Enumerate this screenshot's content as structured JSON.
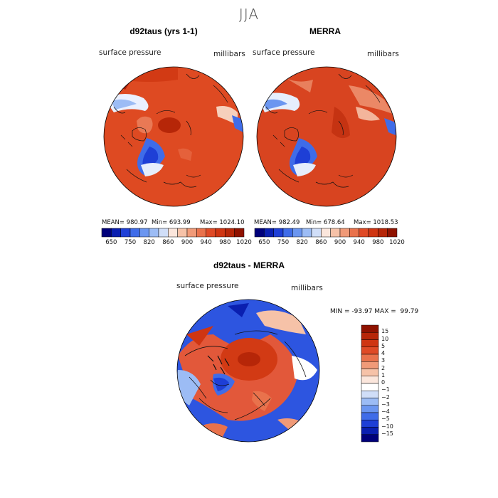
{
  "title": "JJA",
  "panels": [
    {
      "title": "d92taus (yrs 1-1)",
      "subtitle_left": "surface pressure",
      "subtitle_right": "millibars",
      "stats": {
        "mean": "MEAN= 980.97",
        "min": "Min= 693.99",
        "max": "Max= 1024.10"
      }
    },
    {
      "title": "MERRA",
      "subtitle_left": "surface pressure",
      "subtitle_right": "millibars",
      "stats": {
        "mean": "MEAN= 982.49",
        "min": "Min= 678.64",
        "max": "Max= 1018.53"
      }
    },
    {
      "title": "d92taus - MERRA",
      "subtitle_left": "surface pressure",
      "subtitle_right": "millibars",
      "minmax": "MIN = -93.97 MAX =  99.79"
    }
  ],
  "colorbar_horizontal": {
    "labels": [
      "650",
      "750",
      "820",
      "860",
      "900",
      "940",
      "980",
      "1020"
    ],
    "colors": [
      "#00007a",
      "#0a1fb0",
      "#1e3fd6",
      "#3f6ce8",
      "#6b96f0",
      "#9cbcf5",
      "#d0def8",
      "#fbe6dc",
      "#f6c2a8",
      "#f09a78",
      "#e9724c",
      "#df4a26",
      "#cf3512",
      "#b62608",
      "#8f1200"
    ]
  },
  "colorbar_vertical": {
    "labels": [
      "15",
      "10",
      "5",
      "4",
      "3",
      "2",
      "1",
      "0",
      "−1",
      "−2",
      "−3",
      "−4",
      "−5",
      "−10",
      "−15"
    ],
    "colors": [
      "#8f1200",
      "#b62608",
      "#cf3512",
      "#df4a26",
      "#e9724c",
      "#f09a78",
      "#f6c2a8",
      "#fbe6dc",
      "#ffffff",
      "#d0def8",
      "#9cbcf5",
      "#6b96f0",
      "#3f6ce8",
      "#1e3fd6",
      "#0a1fb0",
      "#00007a"
    ]
  },
  "chart_data": [
    {
      "type": "heatmap",
      "title": "d92taus (yrs 1-1)",
      "variable": "surface pressure",
      "units": "millibars",
      "mean": 980.97,
      "min": 693.99,
      "max": 1024.1,
      "colorbar_levels": [
        650,
        750,
        820,
        860,
        900,
        940,
        980,
        1020
      ]
    },
    {
      "type": "heatmap",
      "title": "MERRA",
      "variable": "surface pressure",
      "units": "millibars",
      "mean": 982.49,
      "min": 678.64,
      "max": 1018.53,
      "colorbar_levels": [
        650,
        750,
        820,
        860,
        900,
        940,
        980,
        1020
      ]
    },
    {
      "type": "heatmap",
      "title": "d92taus - MERRA",
      "variable": "surface pressure",
      "units": "millibars",
      "min": -93.97,
      "max": 99.79,
      "colorbar_levels": [
        15,
        10,
        5,
        4,
        3,
        2,
        1,
        0,
        -1,
        -2,
        -3,
        -4,
        -5,
        -10,
        -15
      ]
    }
  ]
}
